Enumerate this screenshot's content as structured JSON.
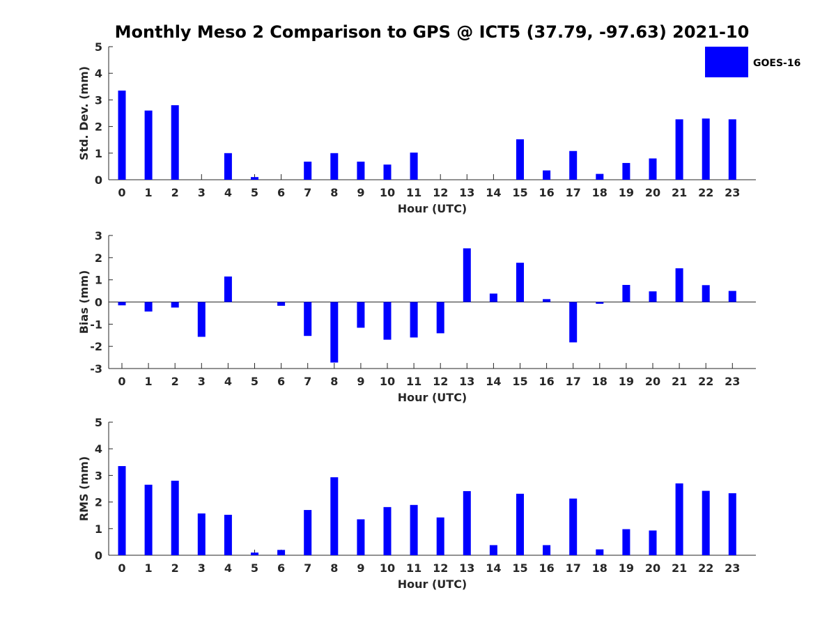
{
  "figure": {
    "title": "Monthly Meso 2 Comparison to GPS @ ICT5 (37.79, -97.63) 2021-10"
  },
  "legend": {
    "label": "GOES-16",
    "color": "#0000ff",
    "placement": "top-right"
  },
  "chart_data": [
    {
      "type": "bar",
      "ylabel": "Std. Dev. (mm)",
      "xlabel": "Hour (UTC)",
      "ylim": [
        0,
        5
      ],
      "yticks": [
        0,
        1,
        2,
        3,
        4,
        5
      ],
      "categories": [
        "0",
        "1",
        "2",
        "3",
        "4",
        "5",
        "6",
        "7",
        "8",
        "9",
        "10",
        "11",
        "12",
        "13",
        "14",
        "15",
        "16",
        "17",
        "18",
        "19",
        "20",
        "21",
        "22",
        "23"
      ],
      "series": [
        {
          "name": "GOES-16",
          "values": [
            3.35,
            2.6,
            2.8,
            0,
            1.0,
            0.1,
            0,
            0.68,
            1.0,
            0.68,
            0.57,
            1.02,
            0,
            0,
            0,
            1.52,
            0.35,
            1.08,
            0.22,
            0.63,
            0.8,
            2.27,
            2.3,
            2.27
          ]
        }
      ]
    },
    {
      "type": "bar",
      "ylabel": "Bias (mm)",
      "xlabel": "Hour (UTC)",
      "ylim": [
        -3,
        3
      ],
      "yticks": [
        -3,
        -2,
        -1,
        0,
        1,
        2,
        3
      ],
      "categories": [
        "0",
        "1",
        "2",
        "3",
        "4",
        "5",
        "6",
        "7",
        "8",
        "9",
        "10",
        "11",
        "12",
        "13",
        "14",
        "15",
        "16",
        "17",
        "18",
        "19",
        "20",
        "21",
        "22",
        "23"
      ],
      "series": [
        {
          "name": "GOES-16",
          "values": [
            -0.15,
            -0.43,
            -0.25,
            -1.57,
            1.15,
            0,
            -0.17,
            -1.53,
            -2.73,
            -1.16,
            -1.7,
            -1.6,
            -1.41,
            2.42,
            0.38,
            1.77,
            0.13,
            -1.82,
            -0.08,
            0.77,
            0.48,
            1.52,
            0.76,
            0.5
          ]
        }
      ]
    },
    {
      "type": "bar",
      "ylabel": "RMS (mm)",
      "xlabel": "Hour (UTC)",
      "ylim": [
        0,
        5
      ],
      "yticks": [
        0,
        1,
        2,
        3,
        4,
        5
      ],
      "categories": [
        "0",
        "1",
        "2",
        "3",
        "4",
        "5",
        "6",
        "7",
        "8",
        "9",
        "10",
        "11",
        "12",
        "13",
        "14",
        "15",
        "16",
        "17",
        "18",
        "19",
        "20",
        "21",
        "22",
        "23"
      ],
      "series": [
        {
          "name": "GOES-16",
          "values": [
            3.35,
            2.65,
            2.8,
            1.57,
            1.52,
            0.1,
            0.2,
            1.7,
            2.93,
            1.35,
            1.81,
            1.89,
            1.42,
            2.41,
            0.38,
            2.31,
            0.38,
            2.13,
            0.22,
            0.98,
            0.93,
            2.7,
            2.42,
            2.33
          ]
        }
      ]
    }
  ]
}
